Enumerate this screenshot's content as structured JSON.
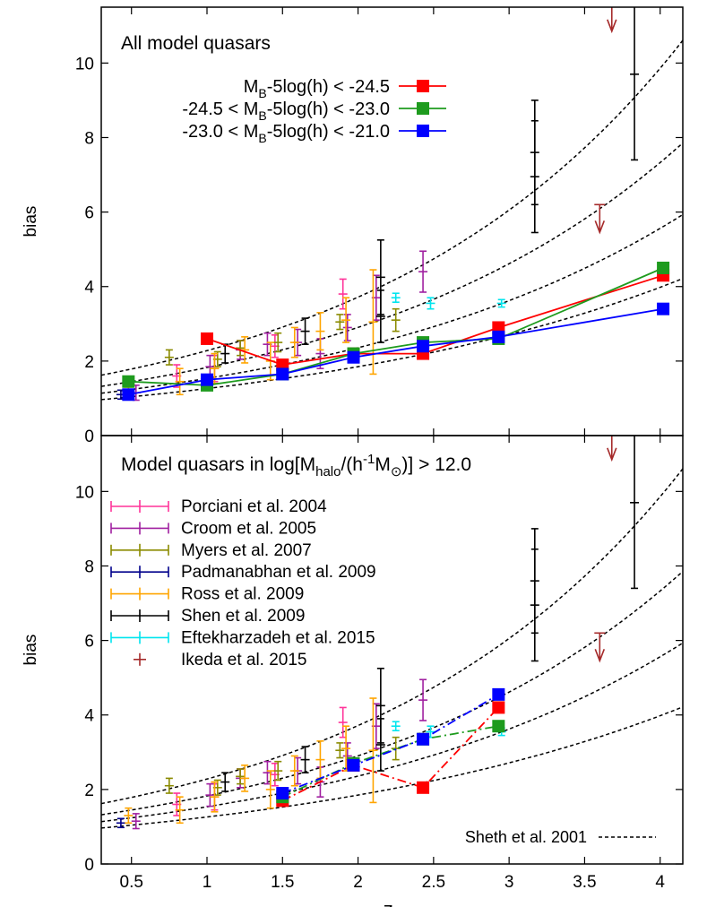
{
  "chart_data": {
    "type": "scatter",
    "xlabel": "z",
    "ylabel": "bias",
    "xlim": [
      0.3,
      4.15
    ],
    "ylim": [
      0,
      11.5
    ],
    "xticks": [
      "0.5",
      "1",
      "1.5",
      "2",
      "2.5",
      "3",
      "3.5",
      "4"
    ],
    "yticks_top": [
      "2",
      "4",
      "6",
      "8",
      "10"
    ],
    "yticks_bottom": [
      "0",
      "2",
      "4",
      "6",
      "8",
      "10"
    ],
    "y_zero_shared": "0",
    "theory": {
      "name": "Sheth et al. 2001",
      "curves": [
        {
          "b0": 1.4,
          "k": 0.488
        },
        {
          "b0": 1.15,
          "k": 0.463
        },
        {
          "b0": 1.0,
          "k": 0.429
        },
        {
          "b0": 0.86,
          "k": 0.383
        }
      ]
    },
    "observations": [
      {
        "name": "Porciani et al. 2004",
        "color": "#ff3399",
        "points": [
          [
            0.8,
            1.6,
            0.3
          ],
          [
            1.05,
            1.8,
            0.35
          ],
          [
            1.45,
            2.4,
            0.3
          ],
          [
            1.9,
            3.8,
            0.4
          ]
        ]
      },
      {
        "name": "Croom et al. 2005",
        "color": "#a020a0",
        "points": [
          [
            0.53,
            1.15,
            0.2
          ],
          [
            1.02,
            1.85,
            0.3
          ],
          [
            1.22,
            2.3,
            0.25
          ],
          [
            1.4,
            2.45,
            0.3
          ],
          [
            1.6,
            2.5,
            0.35
          ],
          [
            1.75,
            2.2,
            0.4
          ],
          [
            1.93,
            2.9,
            0.35
          ],
          [
            2.12,
            3.7,
            0.6
          ],
          [
            2.43,
            4.4,
            0.55
          ]
        ]
      },
      {
        "name": "Myers et al. 2007",
        "color": "#8b8b00",
        "points": [
          [
            0.75,
            2.1,
            0.2
          ],
          [
            1.07,
            2.05,
            0.2
          ],
          [
            1.22,
            2.35,
            0.2
          ],
          [
            1.47,
            2.5,
            0.25
          ],
          [
            1.88,
            3.05,
            0.2
          ],
          [
            2.25,
            3.1,
            0.3
          ]
        ]
      },
      {
        "name": "Padmanabhan et al. 2009",
        "color": "#00008b",
        "points": [
          [
            0.43,
            1.1,
            0.12
          ]
        ]
      },
      {
        "name": "Ross et al. 2009",
        "color": "#ffa500",
        "points": [
          [
            0.48,
            1.3,
            0.2
          ],
          [
            0.82,
            1.45,
            0.35
          ],
          [
            1.05,
            1.8,
            0.4
          ],
          [
            1.25,
            2.3,
            0.35
          ],
          [
            1.42,
            2.0,
            0.5
          ],
          [
            1.58,
            2.5,
            0.4
          ],
          [
            1.75,
            2.8,
            0.5
          ],
          [
            1.92,
            3.1,
            0.6
          ],
          [
            2.1,
            3.05,
            1.4
          ]
        ]
      },
      {
        "name": "Shen et al. 2009",
        "color": "#000000",
        "points": [
          [
            1.12,
            2.2,
            0.25
          ],
          [
            1.65,
            2.8,
            0.35
          ],
          [
            2.15,
            4.25,
            1.0
          ],
          [
            2.15,
            3.2,
            0.7
          ],
          [
            3.17,
            7.6,
            1.4
          ],
          [
            3.17,
            6.95,
            1.5
          ],
          [
            3.83,
            9.7,
            2.3
          ]
        ]
      },
      {
        "name": "Eftekharzadeh et al. 2015",
        "color": "#00e5ee",
        "points": [
          [
            2.25,
            3.7,
            0.12
          ],
          [
            2.48,
            3.55,
            0.15
          ],
          [
            2.95,
            3.55,
            0.1
          ]
        ]
      },
      {
        "name": "Ikeda et al. 2015",
        "color": "#a52a2a",
        "upper_limits": [
          [
            3.6,
            6.2
          ],
          [
            3.68,
            11.6
          ]
        ]
      }
    ],
    "panels": [
      {
        "title": "All model quasars",
        "legend": [
          {
            "label": "M",
            "sub": "B",
            "tail": "-5log(h) < -24.5",
            "color": "#ff0000"
          },
          {
            "label": "-24.5 < M",
            "sub": "B",
            "tail": "-5log(h) < -23.0",
            "color": "#1e9b1e"
          },
          {
            "label": "-23.0 < M",
            "sub": "B",
            "tail": "-5log(h) < -21.0",
            "color": "#0000ff"
          }
        ],
        "series": [
          {
            "color": "#ff0000",
            "dash": "",
            "points": [
              [
                1.0,
                2.6
              ],
              [
                1.5,
                1.9
              ],
              [
                1.97,
                2.2
              ],
              [
                2.43,
                2.2
              ],
              [
                2.93,
                2.9
              ],
              [
                4.02,
                4.3
              ]
            ]
          },
          {
            "color": "#1e9b1e",
            "dash": "",
            "points": [
              [
                0.48,
                1.45
              ],
              [
                1.0,
                1.35
              ],
              [
                1.5,
                1.65
              ],
              [
                1.97,
                2.2
              ],
              [
                2.43,
                2.5
              ],
              [
                2.93,
                2.6
              ],
              [
                4.02,
                4.5
              ]
            ]
          },
          {
            "color": "#0000ff",
            "dash": "",
            "points": [
              [
                0.48,
                1.1
              ],
              [
                1.0,
                1.5
              ],
              [
                1.5,
                1.65
              ],
              [
                1.97,
                2.1
              ],
              [
                2.43,
                2.4
              ],
              [
                2.93,
                2.65
              ],
              [
                4.02,
                3.4
              ]
            ]
          }
        ]
      },
      {
        "title_pre": "Model quasars in log[M",
        "title_sub1": "halo",
        "title_mid": "/(h",
        "title_sup": "-1",
        "title_m": "M",
        "title_sub2": "⊙",
        "title_post": ")] > 12.0",
        "series": [
          {
            "color": "#ff0000",
            "dash": "10,4,2,4",
            "points": [
              [
                1.5,
                1.7
              ],
              [
                1.97,
                2.65
              ],
              [
                2.43,
                2.05
              ],
              [
                2.93,
                4.2
              ]
            ]
          },
          {
            "color": "#1e9b1e",
            "dash": "10,4,2,4",
            "points": [
              [
                1.5,
                1.8
              ],
              [
                1.97,
                2.7
              ],
              [
                2.43,
                3.35
              ],
              [
                2.93,
                3.7
              ]
            ]
          },
          {
            "color": "#0000ff",
            "dash": "10,4,2,4",
            "points": [
              [
                1.5,
                1.9
              ],
              [
                1.97,
                2.65
              ],
              [
                2.43,
                3.35
              ],
              [
                2.93,
                4.55
              ]
            ]
          }
        ]
      }
    ]
  }
}
